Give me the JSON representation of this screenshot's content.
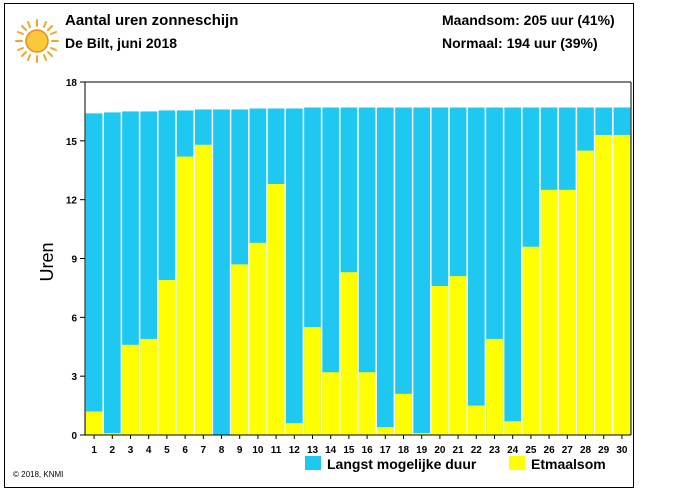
{
  "header": {
    "title": "Aantal uren zonneschijn",
    "subtitle": "De Bilt, juni 2018",
    "maandsom": "Maandsom: 205 uur (41%)",
    "normaal": "Normaal: 194 uur (39%)"
  },
  "footer": {
    "copyright": "© 2018, KNMI"
  },
  "colors": {
    "possible": "#1ec8f0",
    "actual": "#ffff00",
    "sun": "#f5a623"
  },
  "chart_data": {
    "type": "bar",
    "ylabel": "Uren",
    "xlabel": "",
    "ylim": [
      0,
      18
    ],
    "yticks": [
      0,
      3,
      6,
      9,
      12,
      15,
      18
    ],
    "grid": false,
    "legend_position": "bottom",
    "categories": [
      "1",
      "2",
      "3",
      "4",
      "5",
      "6",
      "7",
      "8",
      "9",
      "10",
      "11",
      "12",
      "13",
      "14",
      "15",
      "16",
      "17",
      "18",
      "19",
      "20",
      "21",
      "22",
      "23",
      "24",
      "25",
      "26",
      "27",
      "28",
      "29",
      "30"
    ],
    "series": [
      {
        "name": "Langst mogelijke duur",
        "values": [
          16.4,
          16.45,
          16.5,
          16.5,
          16.55,
          16.55,
          16.6,
          16.6,
          16.6,
          16.65,
          16.65,
          16.65,
          16.7,
          16.7,
          16.7,
          16.7,
          16.7,
          16.7,
          16.7,
          16.7,
          16.7,
          16.7,
          16.7,
          16.7,
          16.7,
          16.7,
          16.7,
          16.7,
          16.7,
          16.7
        ]
      },
      {
        "name": "Etmaalsom",
        "values": [
          1.2,
          0.1,
          4.6,
          4.9,
          7.9,
          14.2,
          14.8,
          0.0,
          8.7,
          9.8,
          12.8,
          0.6,
          5.5,
          3.2,
          8.3,
          3.2,
          0.4,
          2.1,
          0.1,
          7.6,
          8.1,
          1.5,
          4.9,
          0.7,
          9.6,
          12.5,
          12.5,
          14.5,
          15.3,
          15.3
        ]
      }
    ]
  }
}
